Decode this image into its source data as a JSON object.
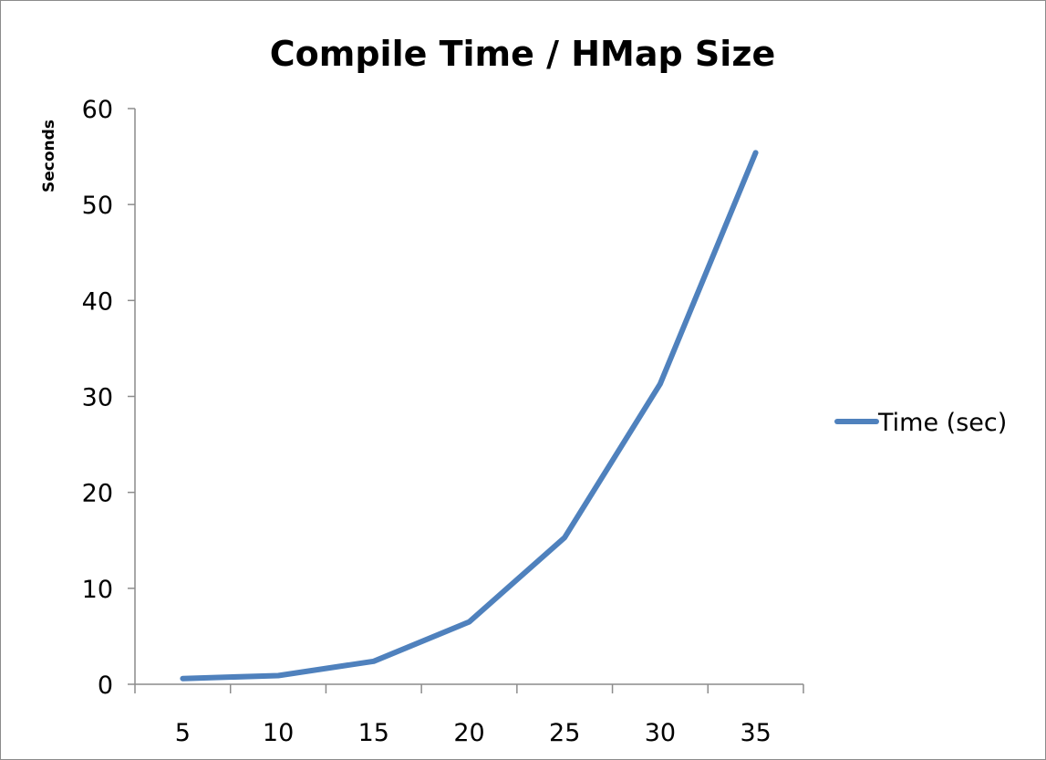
{
  "chart_data": {
    "type": "line",
    "title": "Compile Time / HMap Size",
    "xlabel": "",
    "ylabel": "Seconds",
    "categories": [
      "5",
      "10",
      "15",
      "20",
      "25",
      "30",
      "35"
    ],
    "x": [
      5,
      10,
      15,
      20,
      25,
      30,
      35
    ],
    "series": [
      {
        "name": "Time (sec)",
        "color": "#4f81bd",
        "values": [
          0.6,
          0.9,
          2.4,
          6.5,
          15.3,
          31.3,
          55.4
        ]
      }
    ],
    "ylim": [
      0,
      60
    ],
    "yticks": [
      0,
      10,
      20,
      30,
      40,
      50,
      60
    ],
    "grid": false,
    "legend": "right"
  }
}
